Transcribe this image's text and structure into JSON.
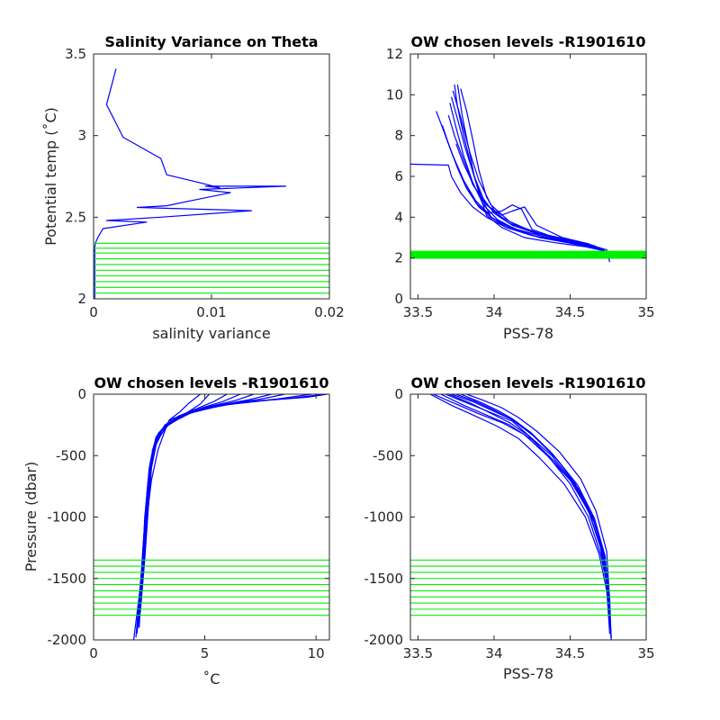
{
  "colors": {
    "profile": "#0000ff",
    "level": "#00ee00",
    "axis": "#262626"
  },
  "chart_data": [
    {
      "type": "line",
      "title": "Salinity Variance on Theta",
      "xlabel": "salinity variance",
      "ylabel": "Potential temp (˚C)",
      "xlim": [
        0,
        0.02
      ],
      "ylim": [
        2,
        3.5
      ],
      "xticks": [
        0,
        0.01,
        0.02
      ],
      "xtick_labels": [
        "0",
        "0.01",
        "0.02"
      ],
      "yticks": [
        2,
        2.5,
        3,
        3.5
      ],
      "ytick_labels": [
        "2",
        "2.5",
        "3",
        "3.5"
      ],
      "series": [
        {
          "x": [
            0.0019,
            0.0011,
            0.0025,
            0.0057,
            0.0062,
            0.0091,
            0.0107,
            0.0095,
            0.0163,
            0.009,
            0.0116,
            0.0082,
            0.0062,
            0.0037,
            0.0134,
            0.0057,
            0.0011,
            0.0045,
            0.0008,
            0.0004,
            0.0002,
            0.0001,
            0.0001,
            0.0001,
            0.0001,
            0.0001,
            0.0001,
            0.0001,
            0.0001,
            0.0001,
            0.0001,
            0.0001,
            0.0001
          ],
          "y": [
            3.41,
            3.19,
            2.99,
            2.86,
            2.76,
            2.71,
            2.68,
            2.69,
            2.69,
            2.67,
            2.65,
            2.6,
            2.57,
            2.56,
            2.54,
            2.5,
            2.48,
            2.47,
            2.43,
            2.38,
            2.35,
            2.32,
            2.3,
            2.27,
            2.25,
            2.22,
            2.19,
            2.16,
            2.12,
            2.09,
            2.06,
            2.03,
            2.0
          ]
        }
      ],
      "levels_axis": "y",
      "levels": [
        2.0,
        2.035,
        2.07,
        2.105,
        2.14,
        2.175,
        2.21,
        2.245,
        2.28,
        2.31,
        2.34
      ]
    },
    {
      "type": "line",
      "title": "OW chosen levels -R1901610",
      "xlabel": "PSS-78",
      "ylabel": "",
      "xlim": [
        33.45,
        35
      ],
      "ylim": [
        0,
        12
      ],
      "xticks": [
        33.5,
        34,
        34.5,
        35
      ],
      "xtick_labels": [
        "33.5",
        "34",
        "34.5",
        "35"
      ],
      "yticks": [
        0,
        2,
        4,
        6,
        8,
        10,
        12
      ],
      "ytick_labels": [
        "0",
        "2",
        "4",
        "6",
        "8",
        "10",
        "12"
      ],
      "series": [
        {
          "x": [
            33.74,
            33.76,
            33.8,
            33.85,
            33.9,
            33.95,
            34.05,
            34.2,
            34.4,
            34.6,
            34.72,
            34.76
          ],
          "y": [
            10.5,
            9.4,
            8.0,
            6.5,
            5.2,
            4.1,
            3.5,
            3.0,
            2.75,
            2.55,
            2.35,
            2.05
          ]
        },
        {
          "x": [
            33.76,
            33.79,
            33.83,
            33.87,
            33.92,
            33.98,
            34.08,
            34.25,
            34.45,
            34.62,
            34.72,
            34.76
          ],
          "y": [
            10.5,
            9.0,
            7.5,
            6.0,
            4.9,
            4.0,
            3.5,
            3.1,
            2.8,
            2.6,
            2.4,
            1.95
          ]
        },
        {
          "x": [
            33.78,
            33.82,
            33.86,
            33.9,
            33.95,
            34.02,
            34.12,
            34.28,
            34.5,
            34.65,
            34.74,
            34.76
          ],
          "y": [
            10.3,
            9.2,
            7.8,
            6.3,
            5.0,
            4.1,
            3.6,
            3.2,
            2.85,
            2.6,
            2.4,
            1.8
          ]
        },
        {
          "x": [
            33.72,
            33.76,
            33.81,
            33.87,
            33.93,
            34.0,
            34.1,
            34.3,
            34.5,
            34.66,
            34.74
          ],
          "y": [
            9.9,
            8.8,
            7.4,
            6.0,
            4.9,
            4.2,
            3.7,
            3.2,
            2.9,
            2.6,
            2.3
          ]
        },
        {
          "x": [
            33.7,
            33.74,
            33.8,
            33.86,
            33.95,
            34.05,
            34.15,
            34.3,
            34.5,
            34.7
          ],
          "y": [
            9.0,
            8.0,
            6.8,
            5.6,
            4.6,
            4.0,
            3.6,
            3.2,
            2.8,
            2.45
          ]
        },
        {
          "x": [
            33.66,
            33.7,
            33.76,
            33.82,
            33.9,
            34.0,
            34.15,
            34.35,
            34.55,
            34.7
          ],
          "y": [
            8.5,
            7.6,
            6.4,
            5.4,
            4.5,
            3.9,
            3.4,
            3.0,
            2.7,
            2.4
          ]
        },
        {
          "x": [
            33.62,
            33.67,
            33.73,
            33.8,
            33.88,
            33.98,
            34.1,
            34.3,
            34.5,
            34.7
          ],
          "y": [
            9.2,
            8.2,
            7.0,
            5.8,
            4.7,
            4.0,
            3.5,
            3.1,
            2.8,
            2.4
          ]
        },
        {
          "x": [
            33.68,
            33.73,
            33.8,
            33.88,
            33.96,
            34.05,
            34.12,
            34.18,
            34.25,
            34.4,
            34.6,
            34.72
          ],
          "y": [
            8.0,
            7.0,
            5.8,
            4.8,
            4.2,
            4.3,
            4.6,
            4.4,
            3.4,
            3.0,
            2.7,
            2.35
          ]
        },
        {
          "x": [
            33.75,
            33.8,
            33.87,
            33.95,
            34.05,
            34.12,
            34.2,
            34.28,
            34.45,
            34.62,
            34.74
          ],
          "y": [
            7.6,
            6.6,
            5.5,
            4.6,
            4.1,
            4.3,
            4.5,
            3.6,
            3.0,
            2.7,
            2.3
          ]
        },
        {
          "x": [
            33.45,
            33.7,
            33.72,
            33.78,
            33.86,
            33.95,
            34.08,
            34.25,
            34.45,
            34.65,
            34.74
          ],
          "y": [
            6.6,
            6.55,
            6.0,
            5.2,
            4.5,
            4.0,
            3.5,
            3.1,
            2.8,
            2.5,
            2.3
          ]
        },
        {
          "x": [
            33.73,
            33.78,
            33.84,
            33.9,
            33.98,
            34.1,
            34.25,
            34.45,
            34.65,
            34.75
          ],
          "y": [
            10.2,
            8.9,
            7.2,
            5.8,
            4.6,
            3.8,
            3.3,
            2.9,
            2.55,
            2.25
          ]
        },
        {
          "x": [
            33.71,
            33.75,
            33.8,
            33.86,
            33.93,
            34.02,
            34.14,
            34.3,
            34.52,
            34.7
          ],
          "y": [
            9.6,
            8.4,
            7.0,
            5.7,
            4.6,
            3.9,
            3.4,
            3.0,
            2.7,
            2.4
          ]
        }
      ],
      "levels_axis": "y",
      "levels": [
        2.0,
        2.04,
        2.08,
        2.12,
        2.16,
        2.2,
        2.24,
        2.28,
        2.32
      ]
    },
    {
      "type": "line",
      "title": "OW chosen levels -R1901610",
      "xlabel": "˚C",
      "ylabel": "Pressure (dbar)",
      "xlim": [
        0,
        10.6
      ],
      "ylim": [
        -2000,
        0
      ],
      "xticks": [
        0,
        5,
        10
      ],
      "xtick_labels": [
        "0",
        "5",
        "10"
      ],
      "yticks": [
        -2000,
        -1500,
        -1000,
        -500,
        0
      ],
      "ytick_labels": [
        "-2000",
        "-1500",
        "-1000",
        "-500",
        "0"
      ],
      "series": [
        {
          "x": [
            10.4,
            9.0,
            7.0,
            5.2,
            3.8,
            3.0,
            2.6,
            2.4,
            2.3,
            2.15,
            1.8
          ],
          "y": [
            0,
            -30,
            -60,
            -100,
            -180,
            -300,
            -500,
            -800,
            -1200,
            -1500,
            -2000
          ]
        },
        {
          "x": [
            9.8,
            8.2,
            6.5,
            5.0,
            3.5,
            2.9,
            2.55,
            2.4,
            2.25,
            2.1,
            1.9
          ],
          "y": [
            0,
            -40,
            -70,
            -120,
            -200,
            -320,
            -550,
            -850,
            -1250,
            -1550,
            -1980
          ]
        },
        {
          "x": [
            8.6,
            7.5,
            6.0,
            4.6,
            3.4,
            2.8,
            2.5,
            2.35,
            2.2,
            2.1,
            1.95
          ],
          "y": [
            0,
            -40,
            -80,
            -130,
            -220,
            -350,
            -600,
            -900,
            -1300,
            -1600,
            -1950
          ]
        },
        {
          "x": [
            7.2,
            6.4,
            5.2,
            4.2,
            3.2,
            2.75,
            2.5,
            2.3,
            2.2,
            2.05
          ],
          "y": [
            0,
            -50,
            -100,
            -160,
            -250,
            -400,
            -650,
            -1000,
            -1400,
            -1900
          ]
        },
        {
          "x": [
            6.0,
            5.4,
            4.6,
            3.8,
            3.1,
            2.7,
            2.45,
            2.3,
            2.15,
            2.0
          ],
          "y": [
            0,
            -60,
            -120,
            -180,
            -280,
            -420,
            -700,
            -1050,
            -1450,
            -1870
          ]
        },
        {
          "x": [
            5.2,
            4.8,
            4.2,
            3.5,
            3.0,
            2.65,
            2.45,
            2.3,
            2.15,
            2.0
          ],
          "y": [
            0,
            -80,
            -150,
            -220,
            -330,
            -450,
            -750,
            -1100,
            -1500,
            -1850
          ]
        },
        {
          "x": [
            4.8,
            4.3,
            3.9,
            3.4,
            3.2,
            2.9,
            2.6,
            2.4,
            2.2,
            2.05
          ],
          "y": [
            0,
            -70,
            -140,
            -210,
            -300,
            -450,
            -700,
            -1000,
            -1400,
            -1820
          ]
        },
        {
          "x": [
            10.5,
            9.6,
            7.8,
            5.8,
            4.2,
            3.2,
            2.7,
            2.5,
            2.35,
            2.2,
            2.0
          ],
          "y": [
            0,
            -25,
            -50,
            -90,
            -160,
            -270,
            -450,
            -750,
            -1150,
            -1500,
            -1900
          ]
        },
        {
          "x": [
            6.6,
            5.8,
            4.9,
            4.0,
            3.3,
            2.85,
            2.6,
            2.45,
            2.3,
            2.1
          ],
          "y": [
            0,
            -60,
            -110,
            -170,
            -260,
            -380,
            -600,
            -950,
            -1350,
            -1780
          ]
        },
        {
          "x": [
            8.0,
            7.0,
            5.6,
            4.4,
            3.4,
            2.8,
            2.55,
            2.4,
            2.25,
            2.05
          ],
          "y": [
            0,
            -45,
            -90,
            -150,
            -240,
            -380,
            -620,
            -950,
            -1350,
            -1800
          ]
        }
      ],
      "levels_axis": "y",
      "levels": [
        -1350,
        -1400,
        -1450,
        -1500,
        -1550,
        -1600,
        -1650,
        -1700,
        -1750,
        -1800
      ]
    },
    {
      "type": "line",
      "title": "OW chosen levels -R1901610",
      "xlabel": "PSS-78",
      "ylabel": "",
      "xlim": [
        33.45,
        35
      ],
      "ylim": [
        -2000,
        0
      ],
      "xticks": [
        33.5,
        34,
        34.5,
        35
      ],
      "xtick_labels": [
        "33.5",
        "34",
        "34.5",
        "35"
      ],
      "yticks": [
        -2000,
        -1500,
        -1000,
        -500,
        0
      ],
      "ytick_labels": [
        "-2000",
        "-1500",
        "-1000",
        "-500",
        "0"
      ],
      "series": [
        {
          "x": [
            33.6,
            33.75,
            33.9,
            34.05,
            34.2,
            34.35,
            34.5,
            34.62,
            34.7,
            34.74,
            34.76
          ],
          "y": [
            0,
            -80,
            -160,
            -230,
            -330,
            -500,
            -700,
            -950,
            -1250,
            -1550,
            -1950
          ]
        },
        {
          "x": [
            33.65,
            33.8,
            33.95,
            34.1,
            34.25,
            34.4,
            34.54,
            34.65,
            34.72,
            34.75,
            34.77
          ],
          "y": [
            0,
            -90,
            -170,
            -250,
            -370,
            -550,
            -760,
            -1000,
            -1300,
            -1600,
            -1990
          ]
        },
        {
          "x": [
            33.68,
            33.82,
            33.98,
            34.12,
            34.22,
            34.38,
            34.52,
            34.63,
            34.71,
            34.75,
            34.77
          ],
          "y": [
            0,
            -70,
            -150,
            -220,
            -330,
            -500,
            -720,
            -980,
            -1280,
            -1580,
            -1970
          ]
        },
        {
          "x": [
            33.72,
            33.86,
            34.0,
            34.14,
            34.27,
            34.42,
            34.56,
            34.66,
            34.73,
            34.76,
            34.77
          ],
          "y": [
            0,
            -60,
            -140,
            -220,
            -350,
            -540,
            -780,
            -1050,
            -1350,
            -1650,
            -2000
          ]
        },
        {
          "x": [
            33.78,
            33.9,
            34.02,
            34.12,
            34.24,
            34.38,
            34.52,
            34.64,
            34.72,
            34.76
          ],
          "y": [
            0,
            -60,
            -130,
            -200,
            -310,
            -480,
            -700,
            -970,
            -1300,
            -1700
          ]
        },
        {
          "x": [
            33.82,
            33.93,
            34.05,
            34.16,
            34.28,
            34.43,
            34.57,
            34.67,
            34.74,
            34.76
          ],
          "y": [
            0,
            -50,
            -110,
            -190,
            -300,
            -470,
            -690,
            -950,
            -1280,
            -1680
          ]
        },
        {
          "x": [
            33.58,
            33.72,
            33.88,
            34.02,
            34.16,
            34.3,
            34.46,
            34.6,
            34.69,
            34.74,
            34.76
          ],
          "y": [
            0,
            -90,
            -180,
            -260,
            -360,
            -520,
            -730,
            -1000,
            -1300,
            -1600,
            -1900
          ]
        },
        {
          "x": [
            33.7,
            33.84,
            33.97,
            34.1,
            34.23,
            34.36,
            34.5,
            34.62,
            34.7,
            34.75,
            34.77
          ],
          "y": [
            0,
            -70,
            -150,
            -230,
            -340,
            -510,
            -730,
            -1000,
            -1300,
            -1600,
            -1980
          ]
        },
        {
          "x": [
            33.75,
            33.88,
            34.0,
            34.12,
            34.25,
            34.4,
            34.55,
            34.66,
            34.73,
            34.76
          ],
          "y": [
            0,
            -60,
            -130,
            -210,
            -330,
            -510,
            -740,
            -1010,
            -1320,
            -1750
          ]
        }
      ],
      "levels_axis": "y",
      "levels": [
        -1350,
        -1400,
        -1450,
        -1500,
        -1550,
        -1600,
        -1650,
        -1700,
        -1750,
        -1800
      ]
    }
  ]
}
